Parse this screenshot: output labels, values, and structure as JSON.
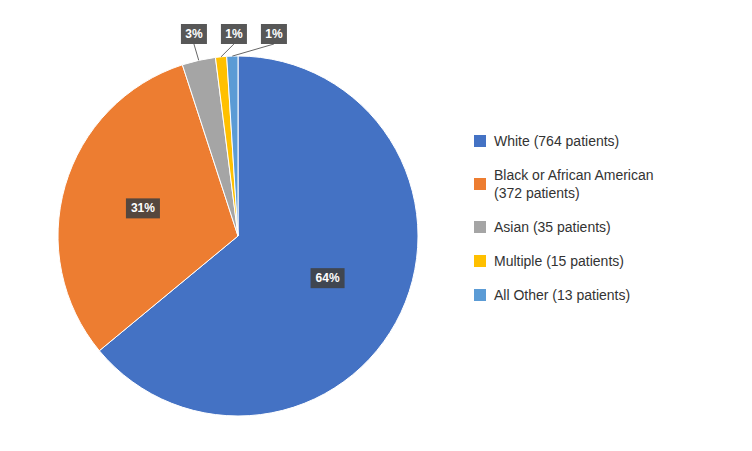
{
  "chart_data": {
    "type": "pie",
    "categories": [
      "White (764 patients)",
      "Black or African American\n(372 patients)",
      "Asian (35 patients)",
      "Multiple (15 patients)",
      "All Other (13 patients)"
    ],
    "values": [
      64,
      31,
      3,
      1,
      1
    ],
    "value_labels": [
      "64%",
      "31%",
      "3%",
      "1%",
      "1%"
    ],
    "colors": [
      "#4472C4",
      "#ED7D31",
      "#A5A5A5",
      "#FFC000",
      "#5B9BD5"
    ],
    "data_labels": true,
    "legend": "right"
  }
}
